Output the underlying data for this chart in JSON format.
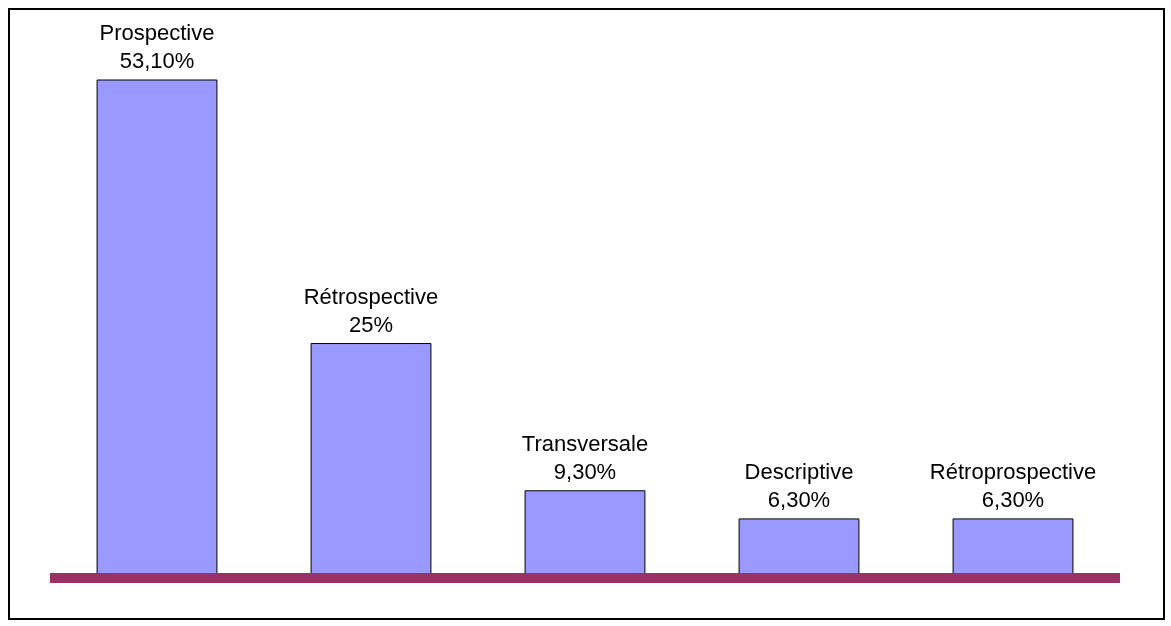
{
  "chart_data": {
    "type": "bar",
    "categories": [
      "Prospective",
      "Rétrospective",
      "Transversale",
      "Descriptive",
      "Rétroprospective"
    ],
    "values": [
      53.1,
      25,
      9.3,
      6.3,
      6.3
    ],
    "value_labels": [
      "53,10%",
      "25%",
      "9,30%",
      "6,30%",
      "6,30%"
    ],
    "color": "#9999ff"
  }
}
